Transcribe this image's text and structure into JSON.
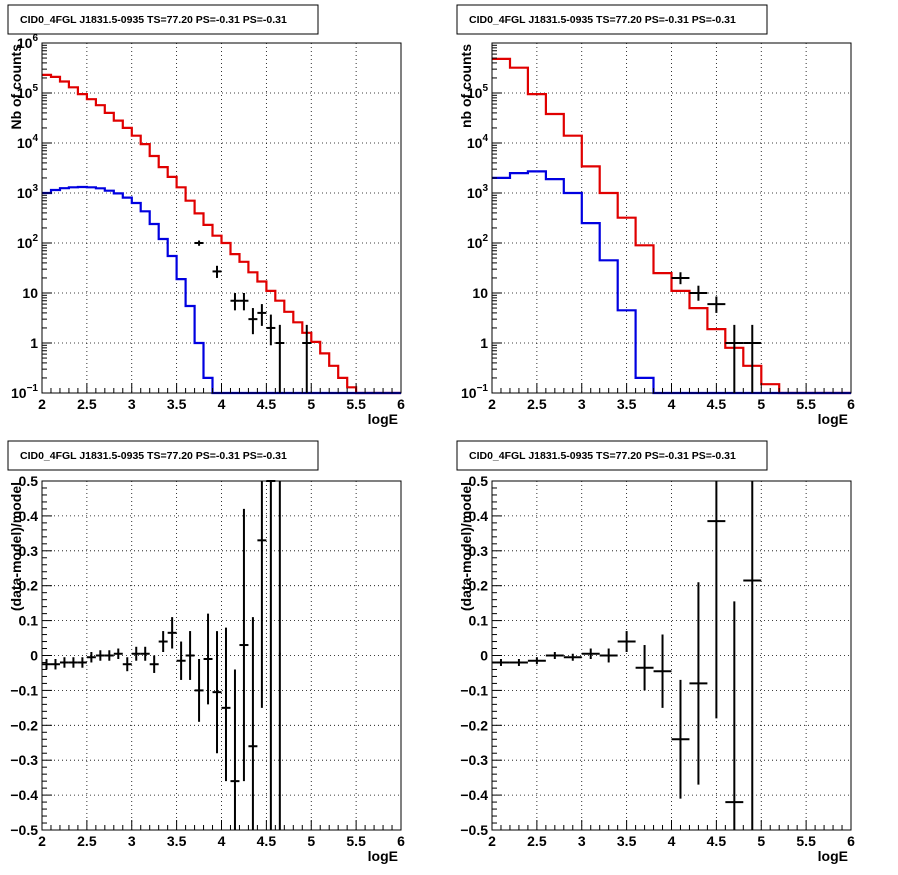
{
  "colors": {
    "data": "#000000",
    "total_model": "#e00000",
    "source_model": "#0000e0",
    "grid": "#000000"
  },
  "chart_data": [
    {
      "type": "histogram",
      "title": "CID0_4FGL J1831.5-0935 TS=77.20 PS=-0.31 PS=-0.31",
      "xlabel": "logE",
      "ylabel": "Nb of counts",
      "xlim": [
        2,
        6
      ],
      "ylim": [
        0.1,
        1000000
      ],
      "yscale": "log",
      "grid": true,
      "xticks": [
        "2",
        "2.5",
        "3",
        "3.5",
        "4",
        "4.5",
        "5",
        "5.5",
        "6"
      ],
      "yticks": [
        {
          "v": 0.1,
          "label": "10",
          "sup": "−1"
        },
        {
          "v": 1,
          "label": "1",
          "sup": ""
        },
        {
          "v": 10,
          "label": "10",
          "sup": ""
        },
        {
          "v": 100,
          "label": "10",
          "sup": "2"
        },
        {
          "v": 1000,
          "label": "10",
          "sup": "3"
        },
        {
          "v": 10000,
          "label": "10",
          "sup": "4"
        },
        {
          "v": 100000,
          "label": "10",
          "sup": "5"
        },
        {
          "v": 1000000,
          "label": "10",
          "sup": "6"
        }
      ],
      "bin_width": 0.1,
      "bin_start": 2.0,
      "series": [
        {
          "role": "total_model",
          "values": [
            230000,
            210000,
            170000,
            130000,
            95000,
            75000,
            57000,
            40000,
            28000,
            20000,
            14000,
            9500,
            5500,
            3300,
            2100,
            1300,
            700,
            390,
            230,
            140,
            100,
            60,
            42,
            26,
            17,
            11,
            7,
            4.2,
            2.6,
            1.6,
            1.05,
            0.62,
            0.35,
            0.2,
            0.13,
            0.1,
            0.1,
            0.1,
            0.1,
            0.1
          ]
        },
        {
          "role": "source_model",
          "values": [
            1000,
            1150,
            1250,
            1300,
            1320,
            1300,
            1240,
            1110,
            980,
            810,
            630,
            430,
            240,
            120,
            55,
            19,
            5.5,
            1.0,
            0.2,
            0.1,
            0.1,
            0.1,
            0.1,
            0.1,
            0.1,
            0.1,
            0.1,
            0.1,
            0.1,
            0.1,
            0.1,
            0.1,
            0.1,
            0.1,
            0.1,
            0.1,
            0.1,
            0.1,
            0.1,
            0.1
          ]
        }
      ],
      "data_points": [
        {
          "x": 3.75,
          "y": 100,
          "xerr": 0.05,
          "ylo": 88,
          "yhi": 112
        },
        {
          "x": 3.95,
          "y": 27,
          "xerr": 0.05,
          "ylo": 20,
          "yhi": 35
        },
        {
          "x": 4.15,
          "y": 7,
          "xerr": 0.05,
          "ylo": 4.5,
          "yhi": 10
        },
        {
          "x": 4.25,
          "y": 7,
          "xerr": 0.05,
          "ylo": 4.5,
          "yhi": 10
        },
        {
          "x": 4.35,
          "y": 3,
          "xerr": 0.05,
          "ylo": 1.5,
          "yhi": 5
        },
        {
          "x": 4.45,
          "y": 4,
          "xerr": 0.05,
          "ylo": 2.2,
          "yhi": 6
        },
        {
          "x": 4.55,
          "y": 2,
          "xerr": 0.05,
          "ylo": 0.9,
          "yhi": 3.7
        },
        {
          "x": 4.65,
          "y": 1,
          "xerr": 0.05,
          "ylo": 0.1,
          "yhi": 2.3
        },
        {
          "x": 4.95,
          "y": 1,
          "xerr": 0.05,
          "ylo": 0.1,
          "yhi": 2.3
        }
      ]
    },
    {
      "type": "histogram",
      "title": "CID0_4FGL J1831.5-0935 TS=77.20 PS=-0.31 PS=-0.31",
      "xlabel": "logE",
      "ylabel": "nb of counts",
      "xlim": [
        2,
        6
      ],
      "ylim": [
        0.1,
        1000000
      ],
      "yscale": "log",
      "grid": true,
      "xticks": [
        "2",
        "2.5",
        "3",
        "3.5",
        "4",
        "4.5",
        "5",
        "5.5",
        "6"
      ],
      "yticks": [
        {
          "v": 0.1,
          "label": "10",
          "sup": "−1"
        },
        {
          "v": 1,
          "label": "1",
          "sup": ""
        },
        {
          "v": 10,
          "label": "10",
          "sup": ""
        },
        {
          "v": 100,
          "label": "10",
          "sup": "2"
        },
        {
          "v": 1000,
          "label": "10",
          "sup": "3"
        },
        {
          "v": 10000,
          "label": "10",
          "sup": "4"
        },
        {
          "v": 100000,
          "label": "10",
          "sup": "5"
        }
      ],
      "bin_width": 0.2,
      "bin_start": 2.0,
      "series": [
        {
          "role": "total_model",
          "values": [
            480000,
            320000,
            95000,
            38000,
            14000,
            3400,
            1000,
            320,
            90,
            25,
            11,
            5,
            1.9,
            0.8,
            0.35,
            0.15,
            0.1,
            0.1,
            0.1,
            0.1
          ]
        },
        {
          "role": "source_model",
          "values": [
            2000,
            2500,
            2700,
            1900,
            1000,
            250,
            45,
            4.5,
            0.2,
            0.1,
            0.1,
            0.1,
            0.1,
            0.1,
            0.1,
            0.1,
            0.1,
            0.1,
            0.1,
            0.1
          ]
        }
      ],
      "data_points": [
        {
          "x": 4.1,
          "y": 20,
          "xerr": 0.1,
          "ylo": 15,
          "yhi": 26
        },
        {
          "x": 4.3,
          "y": 10,
          "xerr": 0.1,
          "ylo": 7,
          "yhi": 14
        },
        {
          "x": 4.5,
          "y": 6,
          "xerr": 0.1,
          "ylo": 4,
          "yhi": 8.5
        },
        {
          "x": 4.7,
          "y": 1,
          "xerr": 0.1,
          "ylo": 0.1,
          "yhi": 2.3
        },
        {
          "x": 4.9,
          "y": 1,
          "xerr": 0.1,
          "ylo": 0.1,
          "yhi": 2.3
        }
      ]
    },
    {
      "type": "scatter",
      "title": "CID0_4FGL J1831.5-0935 TS=77.20 PS=-0.31 PS=-0.31",
      "xlabel": "logE",
      "ylabel": "(data-model)/model",
      "xlim": [
        2,
        6
      ],
      "ylim": [
        -0.5,
        0.5
      ],
      "yscale": "linear",
      "grid": true,
      "xticks": [
        "2",
        "2.5",
        "3",
        "3.5",
        "4",
        "4.5",
        "5",
        "5.5",
        "6"
      ],
      "yticks": [
        {
          "v": -0.5,
          "label": "−0.5"
        },
        {
          "v": -0.4,
          "label": "−0.4"
        },
        {
          "v": -0.3,
          "label": "−0.3"
        },
        {
          "v": -0.2,
          "label": "−0.2"
        },
        {
          "v": -0.1,
          "label": "−0.1"
        },
        {
          "v": 0,
          "label": "0"
        },
        {
          "v": 0.1,
          "label": "0.1"
        },
        {
          "v": 0.2,
          "label": "0.2"
        },
        {
          "v": 0.3,
          "label": "0.3"
        },
        {
          "v": 0.4,
          "label": "0.4"
        },
        {
          "v": 0.5,
          "label": "0.5"
        }
      ],
      "data_points": [
        {
          "x": 2.05,
          "y": -0.025,
          "xerr": 0.05,
          "ylo": -0.04,
          "yhi": -0.01
        },
        {
          "x": 2.15,
          "y": -0.025,
          "xerr": 0.05,
          "ylo": -0.04,
          "yhi": -0.01
        },
        {
          "x": 2.25,
          "y": -0.02,
          "xerr": 0.05,
          "ylo": -0.035,
          "yhi": -0.005
        },
        {
          "x": 2.35,
          "y": -0.02,
          "xerr": 0.05,
          "ylo": -0.035,
          "yhi": -0.005
        },
        {
          "x": 2.45,
          "y": -0.02,
          "xerr": 0.05,
          "ylo": -0.035,
          "yhi": -0.005
        },
        {
          "x": 2.55,
          "y": -0.005,
          "xerr": 0.05,
          "ylo": -0.02,
          "yhi": 0.01
        },
        {
          "x": 2.65,
          "y": 0.0,
          "xerr": 0.05,
          "ylo": -0.015,
          "yhi": 0.015
        },
        {
          "x": 2.75,
          "y": 0.0,
          "xerr": 0.05,
          "ylo": -0.015,
          "yhi": 0.015
        },
        {
          "x": 2.85,
          "y": 0.005,
          "xerr": 0.05,
          "ylo": -0.01,
          "yhi": 0.02
        },
        {
          "x": 2.95,
          "y": -0.025,
          "xerr": 0.05,
          "ylo": -0.045,
          "yhi": -0.005
        },
        {
          "x": 3.05,
          "y": 0.005,
          "xerr": 0.05,
          "ylo": -0.015,
          "yhi": 0.025
        },
        {
          "x": 3.15,
          "y": 0.005,
          "xerr": 0.05,
          "ylo": -0.015,
          "yhi": 0.025
        },
        {
          "x": 3.25,
          "y": -0.025,
          "xerr": 0.05,
          "ylo": -0.05,
          "yhi": 0.0
        },
        {
          "x": 3.35,
          "y": 0.04,
          "xerr": 0.05,
          "ylo": 0.01,
          "yhi": 0.07
        },
        {
          "x": 3.45,
          "y": 0.065,
          "xerr": 0.05,
          "ylo": 0.02,
          "yhi": 0.11
        },
        {
          "x": 3.55,
          "y": -0.015,
          "xerr": 0.05,
          "ylo": -0.07,
          "yhi": 0.04
        },
        {
          "x": 3.65,
          "y": 0.0,
          "xerr": 0.05,
          "ylo": -0.07,
          "yhi": 0.07
        },
        {
          "x": 3.75,
          "y": -0.1,
          "xerr": 0.05,
          "ylo": -0.19,
          "yhi": -0.01
        },
        {
          "x": 3.85,
          "y": -0.01,
          "xerr": 0.05,
          "ylo": -0.14,
          "yhi": 0.12
        },
        {
          "x": 3.95,
          "y": -0.105,
          "xerr": 0.05,
          "ylo": -0.28,
          "yhi": 0.07
        },
        {
          "x": 4.05,
          "y": -0.15,
          "xerr": 0.05,
          "ylo": -0.36,
          "yhi": 0.08
        },
        {
          "x": 4.15,
          "y": -0.36,
          "xerr": 0.05,
          "ylo": -0.5,
          "yhi": -0.04
        },
        {
          "x": 4.25,
          "y": 0.03,
          "xerr": 0.05,
          "ylo": -0.36,
          "yhi": 0.42
        },
        {
          "x": 4.35,
          "y": -0.26,
          "xerr": 0.05,
          "ylo": -0.5,
          "yhi": 0.11
        },
        {
          "x": 4.45,
          "y": 0.33,
          "xerr": 0.05,
          "ylo": -0.15,
          "yhi": 0.5
        },
        {
          "x": 4.55,
          "y": 0.5,
          "xerr": 0.05,
          "ylo": -0.5,
          "yhi": 0.5
        },
        {
          "x": 4.65,
          "y": 0.005,
          "xerr": 0.01,
          "ylo": -0.5,
          "yhi": 0.5
        }
      ]
    },
    {
      "type": "scatter",
      "title": "CID0_4FGL J1831.5-0935 TS=77.20 PS=-0.31 PS=-0.31",
      "xlabel": "logE",
      "ylabel": "(data-model)/model",
      "xlim": [
        2,
        6
      ],
      "ylim": [
        -0.5,
        0.5
      ],
      "yscale": "linear",
      "grid": true,
      "xticks": [
        "2",
        "2.5",
        "3",
        "3.5",
        "4",
        "4.5",
        "5",
        "5.5",
        "6"
      ],
      "yticks": [
        {
          "v": -0.5,
          "label": "−0.5"
        },
        {
          "v": -0.4,
          "label": "−0.4"
        },
        {
          "v": -0.3,
          "label": "−0.3"
        },
        {
          "v": -0.2,
          "label": "−0.2"
        },
        {
          "v": -0.1,
          "label": "−0.1"
        },
        {
          "v": 0,
          "label": "0"
        },
        {
          "v": 0.1,
          "label": "0.1"
        },
        {
          "v": 0.2,
          "label": "0.2"
        },
        {
          "v": 0.3,
          "label": "0.3"
        },
        {
          "v": 0.4,
          "label": "0.4"
        },
        {
          "v": 0.5,
          "label": "0.5"
        }
      ],
      "data_points": [
        {
          "x": 2.1,
          "y": -0.02,
          "xerr": 0.1,
          "ylo": -0.03,
          "yhi": -0.01
        },
        {
          "x": 2.3,
          "y": -0.02,
          "xerr": 0.1,
          "ylo": -0.03,
          "yhi": -0.01
        },
        {
          "x": 2.5,
          "y": -0.015,
          "xerr": 0.1,
          "ylo": -0.025,
          "yhi": -0.005
        },
        {
          "x": 2.7,
          "y": 0.0,
          "xerr": 0.1,
          "ylo": -0.01,
          "yhi": 0.01
        },
        {
          "x": 2.9,
          "y": -0.005,
          "xerr": 0.1,
          "ylo": -0.015,
          "yhi": 0.005
        },
        {
          "x": 3.1,
          "y": 0.005,
          "xerr": 0.1,
          "ylo": -0.01,
          "yhi": 0.02
        },
        {
          "x": 3.3,
          "y": 0.0,
          "xerr": 0.1,
          "ylo": -0.02,
          "yhi": 0.02
        },
        {
          "x": 3.5,
          "y": 0.04,
          "xerr": 0.1,
          "ylo": 0.01,
          "yhi": 0.07
        },
        {
          "x": 3.7,
          "y": -0.035,
          "xerr": 0.1,
          "ylo": -0.1,
          "yhi": 0.03
        },
        {
          "x": 3.9,
          "y": -0.045,
          "xerr": 0.1,
          "ylo": -0.15,
          "yhi": 0.06
        },
        {
          "x": 4.1,
          "y": -0.24,
          "xerr": 0.1,
          "ylo": -0.41,
          "yhi": -0.07
        },
        {
          "x": 4.3,
          "y": -0.08,
          "xerr": 0.1,
          "ylo": -0.37,
          "yhi": 0.21
        },
        {
          "x": 4.5,
          "y": 0.385,
          "xerr": 0.1,
          "ylo": -0.18,
          "yhi": 0.5
        },
        {
          "x": 4.7,
          "y": -0.42,
          "xerr": 0.1,
          "ylo": -0.5,
          "yhi": 0.155
        },
        {
          "x": 4.9,
          "y": 0.215,
          "xerr": 0.1,
          "ylo": -0.5,
          "yhi": 0.5
        }
      ]
    }
  ]
}
